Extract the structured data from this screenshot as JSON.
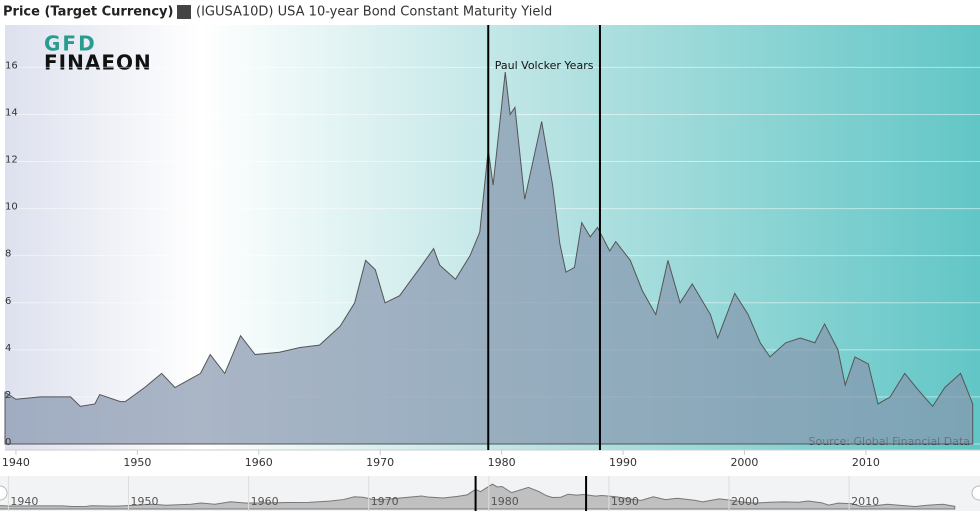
{
  "chart_data": {
    "type": "area",
    "legend_title": "Price (Target Currency)",
    "logo": [
      "GFD",
      "FINAEON"
    ],
    "source": "Source: Global Financial Data",
    "annotation": {
      "text": "Paul Volcker Years",
      "x": [
        1978.9,
        1988.1
      ]
    },
    "x": [
      1939.1,
      1940.0,
      1942.0,
      1944.5,
      1945.3,
      1946.5,
      1946.9,
      1948.6,
      1949.0,
      1950.6,
      1952.0,
      1953.1,
      1955.2,
      1956.0,
      1957.2,
      1958.5,
      1959.7,
      1961.7,
      1963.4,
      1965.0,
      1966.7,
      1967.9,
      1968.8,
      1969.6,
      1970.4,
      1971.6,
      1973.3,
      1974.4,
      1974.9,
      1976.2,
      1977.4,
      1978.2,
      1978.9,
      1979.3,
      1980.3,
      1980.7,
      1981.1,
      1981.9,
      1983.3,
      1984.2,
      1984.8,
      1985.3,
      1986.0,
      1986.6,
      1987.3,
      1987.9,
      1988.9,
      1989.4,
      1990.6,
      1991.6,
      1992.7,
      1993.7,
      1994.7,
      1995.7,
      1997.2,
      1997.8,
      1999.2,
      2000.3,
      2001.3,
      2002.1,
      2003.4,
      2004.6,
      2005.8,
      2006.6,
      2007.7,
      2008.3,
      2009.1,
      2010.2,
      2011.0,
      2012.0,
      2013.2,
      2014.3,
      2015.5,
      2016.5,
      2017.8,
      2018.8
    ],
    "series": [
      {
        "name": "(IGUSA10D) USA 10-year Bond Constant Maturity Yield",
        "color": "#444444",
        "values": [
          2.2,
          1.9,
          2.0,
          2.0,
          1.6,
          1.7,
          2.1,
          1.8,
          1.8,
          2.4,
          3.0,
          2.4,
          3.0,
          3.8,
          3.0,
          4.6,
          3.8,
          3.9,
          4.1,
          4.2,
          5.0,
          6.0,
          7.8,
          7.4,
          6.0,
          6.3,
          7.5,
          8.3,
          7.6,
          7.0,
          8.0,
          9.0,
          12.5,
          11.0,
          15.8,
          14.0,
          14.3,
          10.4,
          13.7,
          11.0,
          8.5,
          7.3,
          7.5,
          9.4,
          8.8,
          9.2,
          8.2,
          8.6,
          7.8,
          6.5,
          5.5,
          7.8,
          6.0,
          6.8,
          5.5,
          4.5,
          6.4,
          5.5,
          4.3,
          3.7,
          4.3,
          4.5,
          4.3,
          5.1,
          4.0,
          2.5,
          3.7,
          3.4,
          1.7,
          2.0,
          3.0,
          2.3,
          1.6,
          2.4,
          3.0,
          1.7
        ]
      }
    ],
    "xlim": [
      1939.1,
      2019.4
    ],
    "xticks": [
      1940,
      1950,
      1960,
      1970,
      1980,
      1990,
      2000,
      2010
    ],
    "ylim": [
      0,
      17.8
    ],
    "yticks": [
      0,
      2,
      4,
      6,
      8,
      10,
      12,
      14,
      16
    ],
    "grid": true,
    "navigator_xlim": [
      1939.3,
      2020.9
    ]
  }
}
